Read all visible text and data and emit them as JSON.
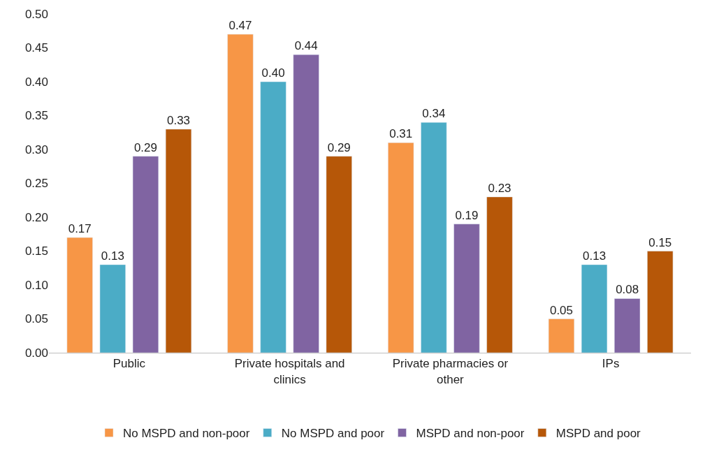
{
  "chart_data": {
    "type": "bar",
    "categories": [
      "Public",
      "Private hospitals and clinics",
      "Private pharmacies or other",
      "IPs"
    ],
    "series": [
      {
        "name": "No MSPD and non-poor",
        "color": "#f79646",
        "values": [
          0.17,
          0.47,
          0.31,
          0.05
        ],
        "value_labels": [
          "0.17",
          "0.47",
          "0.31",
          "0.05"
        ]
      },
      {
        "name": "No MSPD and poor",
        "color": "#4bacc6",
        "values": [
          0.13,
          0.4,
          0.34,
          0.13
        ],
        "value_labels": [
          "0.13",
          "0.40",
          "0.34",
          "0.13"
        ]
      },
      {
        "name": "MSPD and non-poor",
        "color": "#8064a2",
        "values": [
          0.29,
          0.44,
          0.19,
          0.08
        ],
        "value_labels": [
          "0.29",
          "0.44",
          "0.19",
          "0.08"
        ]
      },
      {
        "name": "MSPD and poor",
        "color": "#b65708",
        "values": [
          0.33,
          0.29,
          0.23,
          0.15
        ],
        "value_labels": [
          "0.33",
          "0.29",
          "0.23",
          "0.15"
        ]
      }
    ],
    "ylim": [
      0,
      0.5
    ],
    "yticks": [
      {
        "value": 0,
        "label": "0.00"
      },
      {
        "value": 0.05,
        "label": "0.05"
      },
      {
        "value": 0.1,
        "label": "0.10"
      },
      {
        "value": 0.15,
        "label": "0.15"
      },
      {
        "value": 0.2,
        "label": "0.20"
      },
      {
        "value": 0.25,
        "label": "0.25"
      },
      {
        "value": 0.3,
        "label": "0.30"
      },
      {
        "value": 0.35,
        "label": "0.35"
      },
      {
        "value": 0.4,
        "label": "0.40"
      },
      {
        "value": 0.45,
        "label": "0.45"
      },
      {
        "value": 0.5,
        "label": "0.50"
      }
    ],
    "grid": false,
    "legend": "bottom"
  }
}
